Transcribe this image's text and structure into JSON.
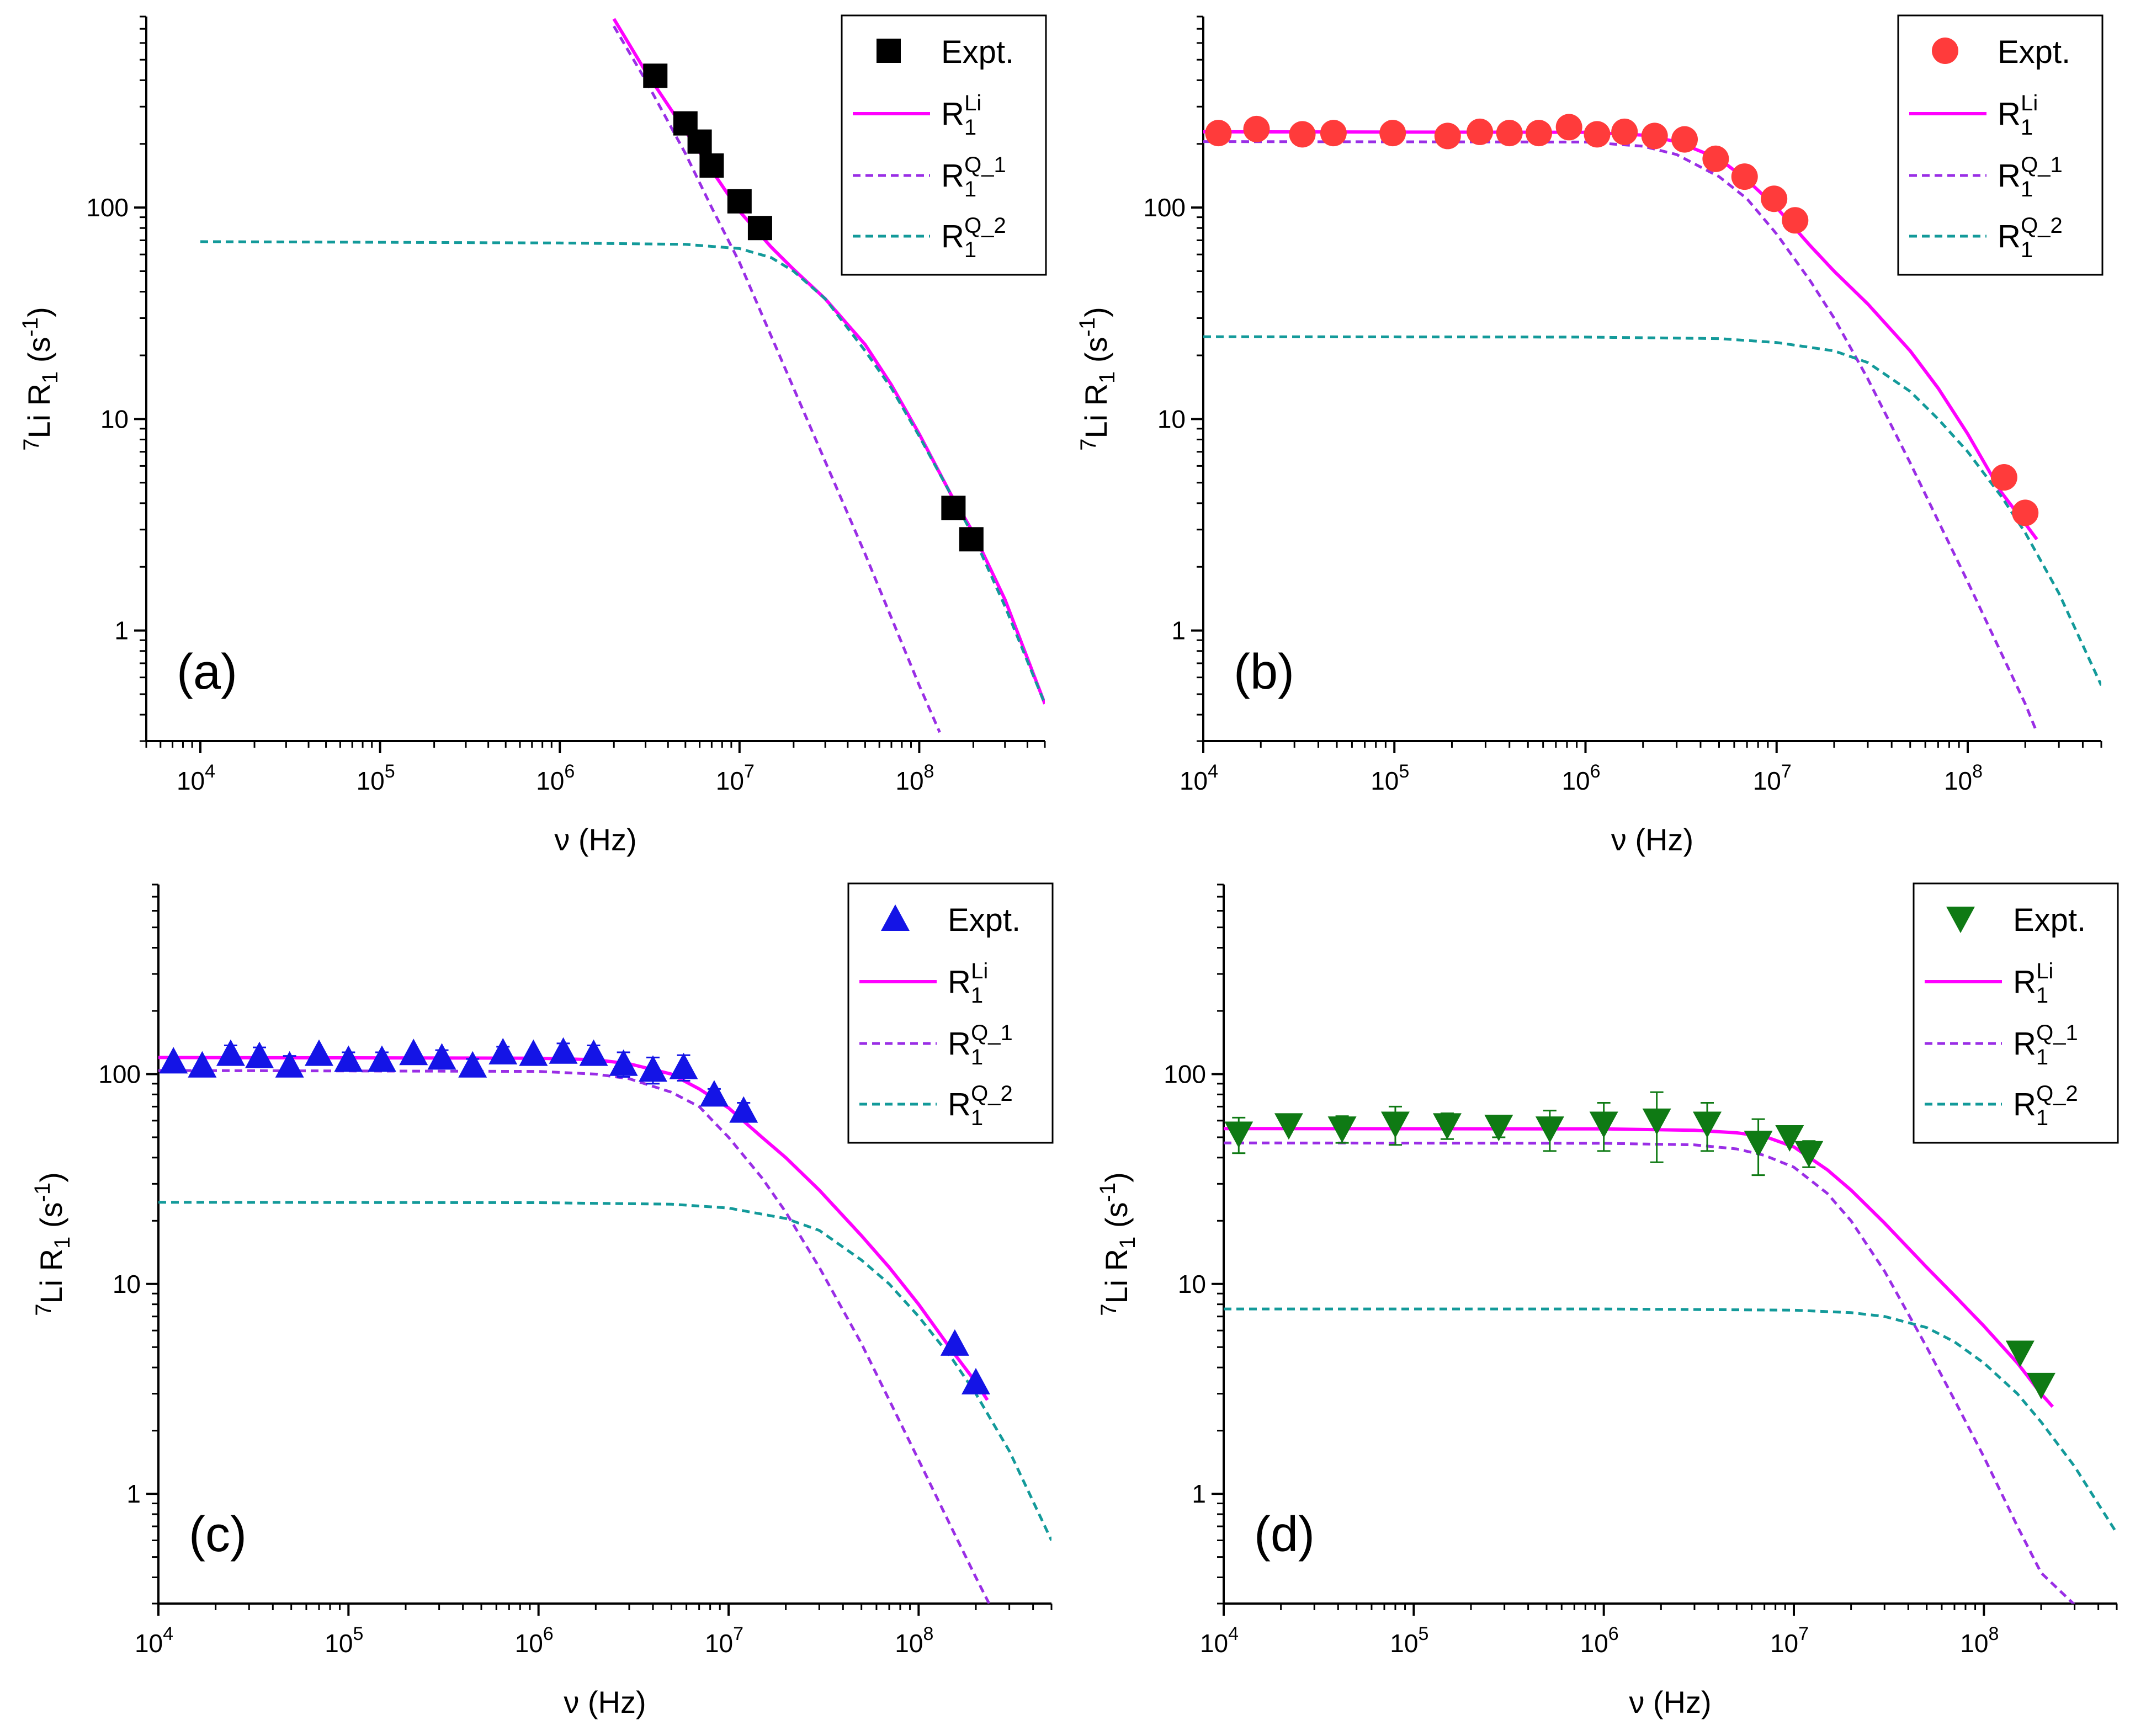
{
  "colors": {
    "rli": "#ff00ff",
    "rq1": "#9a2ee6",
    "rq2": "#139a9a",
    "expt_a": "#000000",
    "expt_b": "#ff3b3b",
    "expt_c": "#1414e6",
    "expt_d": "#0f7a14"
  },
  "legend": {
    "expt": "Expt.",
    "r_base": "R",
    "sub": "1",
    "rli_sup": "Li",
    "rq1_sup": "Q_1",
    "rq2_sup": "Q_2"
  },
  "chart_data": [
    {
      "type": "line",
      "panel_label": "(a)",
      "xlabel": "ν (Hz)",
      "ylabel_parts": [
        "7",
        "Li R",
        "1",
        " (s",
        "-1",
        ")"
      ],
      "xscale": "log",
      "yscale": "log",
      "xlim": [
        5000,
        500000000
      ],
      "ylim": [
        0.3,
        800
      ],
      "xticks": [
        10000,
        100000,
        1000000,
        10000000,
        100000000
      ],
      "xtick_labels": [
        [
          "10",
          "4"
        ],
        [
          "10",
          "5"
        ],
        [
          "10",
          "6"
        ],
        [
          "10",
          "7"
        ],
        [
          "10",
          "8"
        ]
      ],
      "yticks": [
        1,
        10,
        100
      ],
      "ytick_labels": [
        "1",
        "10",
        "100"
      ],
      "legend_position": "top-right",
      "expt_marker": "square",
      "series": [
        {
          "name": "Expt.",
          "kind": "scatter",
          "x": [
            3400000,
            5000000,
            6000000,
            7000000,
            10000000,
            13000000,
            155000000,
            195000000
          ],
          "y": [
            420,
            250,
            205,
            158,
            107,
            80,
            3.8,
            2.7
          ],
          "err": [
            0,
            25,
            22,
            0,
            0,
            0,
            0,
            0
          ]
        },
        {
          "name": "R1Li",
          "kind": "line",
          "x": [
            2000000,
            3000000,
            5000000,
            7000000,
            10000000,
            15000000,
            20000000,
            30000000,
            50000000,
            70000000,
            100000000,
            150000000,
            200000000,
            300000000,
            500000000
          ],
          "y": [
            780,
            440,
            230,
            150,
            96,
            65,
            51,
            37,
            22.5,
            14.5,
            8.5,
            4.4,
            2.9,
            1.4,
            0.45
          ]
        },
        {
          "name": "R1Q_1",
          "kind": "line",
          "x": [
            2000000,
            3000000,
            5000000,
            7000000,
            10000000,
            20000000,
            50000000,
            100000000,
            130000000
          ],
          "y": [
            720,
            400,
            180,
            100,
            55,
            14,
            2.3,
            0.55,
            0.33
          ]
        },
        {
          "name": "R1Q_2",
          "kind": "line",
          "x": [
            10000,
            1000000,
            5000000,
            10000000,
            15000000,
            20000000,
            30000000,
            50000000,
            70000000,
            100000000,
            150000000,
            200000000,
            300000000,
            500000000
          ],
          "y": [
            69,
            68,
            67,
            64,
            58,
            50,
            37,
            21,
            14,
            8.3,
            4.4,
            2.8,
            1.3,
            0.45
          ]
        }
      ]
    },
    {
      "type": "line",
      "panel_label": "(b)",
      "xlabel": "ν (Hz)",
      "ylabel_parts": [
        "7",
        "Li R",
        "1",
        " (s",
        "-1",
        ")"
      ],
      "xscale": "log",
      "yscale": "log",
      "xlim": [
        10000,
        500000000
      ],
      "ylim": [
        0.3,
        800
      ],
      "xticks": [
        10000,
        100000,
        1000000,
        10000000,
        100000000
      ],
      "xtick_labels": [
        [
          "10",
          "4"
        ],
        [
          "10",
          "5"
        ],
        [
          "10",
          "6"
        ],
        [
          "10",
          "7"
        ],
        [
          "10",
          "8"
        ]
      ],
      "yticks": [
        1,
        10,
        100
      ],
      "ytick_labels": [
        "1",
        "10",
        "100"
      ],
      "legend_position": "top-right",
      "expt_marker": "circle",
      "series": [
        {
          "name": "Expt.",
          "kind": "scatter",
          "x": [
            12000,
            19000,
            33000,
            48000,
            98000,
            190000,
            280000,
            400000,
            570000,
            820000,
            1150000,
            1600000,
            2300000,
            3300000,
            4800000,
            6800000,
            9700000,
            12500000,
            155000000,
            200000000
          ],
          "y": [
            225,
            235,
            222,
            225,
            225,
            218,
            228,
            225,
            225,
            240,
            222,
            228,
            218,
            210,
            170,
            140,
            110,
            87,
            5.3,
            3.6
          ],
          "err": [
            0,
            0,
            0,
            0,
            0,
            0,
            0,
            0,
            0,
            0,
            0,
            0,
            0,
            18,
            15,
            12,
            0,
            0,
            0,
            0
          ]
        },
        {
          "name": "R1Li",
          "kind": "line",
          "x": [
            10000,
            1000000,
            2000000,
            3000000,
            5000000,
            7000000,
            10000000,
            15000000,
            20000000,
            30000000,
            50000000,
            70000000,
            100000000,
            150000000,
            200000000,
            230000000
          ],
          "y": [
            228,
            227,
            220,
            205,
            170,
            135,
            100,
            66,
            50,
            35,
            21,
            14,
            8.5,
            4.5,
            3.2,
            2.7
          ]
        },
        {
          "name": "R1Q_1",
          "kind": "line",
          "x": [
            10000,
            1000000,
            2000000,
            3000000,
            5000000,
            7000000,
            10000000,
            15000000,
            20000000,
            30000000,
            50000000,
            70000000,
            100000000,
            150000000,
            200000000,
            230000000
          ],
          "y": [
            205,
            204,
            195,
            178,
            140,
            110,
            75,
            45,
            30,
            15.5,
            6.2,
            3.3,
            1.7,
            0.78,
            0.45,
            0.33
          ]
        },
        {
          "name": "R1Q_2",
          "kind": "line",
          "x": [
            10000,
            1000000,
            5000000,
            10000000,
            20000000,
            30000000,
            50000000,
            70000000,
            100000000,
            150000000,
            200000000,
            300000000,
            500000000
          ],
          "y": [
            24.5,
            24.4,
            24,
            23,
            21,
            18.5,
            13.5,
            10,
            7,
            4.3,
            2.9,
            1.5,
            0.55
          ]
        }
      ]
    },
    {
      "type": "line",
      "panel_label": "(c)",
      "xlabel": "ν (Hz)",
      "ylabel_parts": [
        "7",
        "Li R",
        "1",
        " (s",
        "-1",
        ")"
      ],
      "xscale": "log",
      "yscale": "log",
      "xlim": [
        10000,
        500000000
      ],
      "ylim": [
        0.3,
        800
      ],
      "xticks": [
        10000,
        100000,
        1000000,
        10000000,
        100000000
      ],
      "xtick_labels": [
        [
          "10",
          "4"
        ],
        [
          "10",
          "5"
        ],
        [
          "10",
          "6"
        ],
        [
          "10",
          "7"
        ],
        [
          "10",
          "8"
        ]
      ],
      "yticks": [
        1,
        10,
        100
      ],
      "ytick_labels": [
        "1",
        "10",
        "100"
      ],
      "legend_position": "top-right",
      "expt_marker": "triangle-up",
      "series": [
        {
          "name": "Expt.",
          "kind": "scatter",
          "x": [
            12000,
            17000,
            24000,
            34000,
            49000,
            70000,
            100000,
            150000,
            220000,
            310000,
            450000,
            650000,
            940000,
            1350000,
            1950000,
            2800000,
            4000000,
            5800000,
            8400000,
            12000000,
            155000000,
            200000000
          ],
          "y": [
            115,
            110,
            125,
            122,
            110,
            125,
            117,
            117,
            126,
            120,
            110,
            127,
            125,
            128,
            125,
            112,
            105,
            108,
            80,
            67,
            5.2,
            3.4
          ],
          "err": [
            0,
            0,
            12,
            12,
            12,
            0,
            10,
            10,
            0,
            10,
            8,
            8,
            0,
            12,
            12,
            15,
            15,
            15,
            5,
            6,
            0,
            0
          ]
        },
        {
          "name": "R1Li",
          "kind": "line",
          "x": [
            10000,
            1000000,
            2000000,
            3000000,
            5000000,
            7000000,
            10000000,
            15000000,
            20000000,
            30000000,
            50000000,
            70000000,
            100000000,
            150000000,
            200000000,
            230000000
          ],
          "y": [
            120,
            119,
            117,
            112,
            100,
            85,
            69,
            50,
            40,
            28,
            17,
            12,
            8,
            4.8,
            3.4,
            2.8
          ]
        },
        {
          "name": "R1Q_1",
          "kind": "line",
          "x": [
            10000,
            1000000,
            2000000,
            3000000,
            5000000,
            7000000,
            10000000,
            15000000,
            20000000,
            30000000,
            50000000,
            70000000,
            100000000,
            150000000,
            200000000,
            260000000
          ],
          "y": [
            104,
            103,
            100,
            95,
            82,
            70,
            50,
            32,
            22,
            12,
            5.2,
            2.8,
            1.45,
            0.68,
            0.4,
            0.25
          ]
        },
        {
          "name": "R1Q_2",
          "kind": "line",
          "x": [
            10000,
            1000000,
            5000000,
            10000000,
            20000000,
            30000000,
            50000000,
            70000000,
            100000000,
            150000000,
            200000000,
            300000000,
            500000000
          ],
          "y": [
            24.5,
            24.4,
            24,
            23,
            20.5,
            18,
            13,
            10,
            7,
            4.4,
            3,
            1.6,
            0.6
          ]
        }
      ]
    },
    {
      "type": "line",
      "panel_label": "(d)",
      "xlabel": "ν (Hz)",
      "ylabel_parts": [
        "7",
        "Li R",
        "1",
        " (s",
        "-1",
        ")"
      ],
      "xscale": "log",
      "yscale": "log",
      "xlim": [
        10000,
        500000000
      ],
      "ylim": [
        0.3,
        800
      ],
      "xticks": [
        10000,
        100000,
        1000000,
        10000000,
        100000000
      ],
      "xtick_labels": [
        [
          "10",
          "4"
        ],
        [
          "10",
          "5"
        ],
        [
          "10",
          "6"
        ],
        [
          "10",
          "7"
        ],
        [
          "10",
          "8"
        ]
      ],
      "yticks": [
        1,
        10,
        100
      ],
      "ytick_labels": [
        "1",
        "10",
        "100"
      ],
      "legend_position": "top-right",
      "expt_marker": "triangle-down",
      "series": [
        {
          "name": "Expt.",
          "kind": "scatter",
          "x": [
            12000,
            22000,
            42000,
            80000,
            150000,
            280000,
            520000,
            1000000,
            1900000,
            3500000,
            6500000,
            9500000,
            12000000,
            155000000,
            200000000
          ],
          "y": [
            52,
            57,
            55,
            58,
            57,
            56,
            55,
            58,
            60,
            58,
            47,
            50,
            42,
            4.7,
            3.3
          ],
          "err": [
            10,
            0,
            8,
            12,
            8,
            6,
            12,
            15,
            22,
            15,
            14,
            0,
            6,
            0,
            0
          ]
        },
        {
          "name": "R1Li",
          "kind": "line",
          "x": [
            10000,
            1000000,
            3000000,
            5000000,
            7000000,
            10000000,
            15000000,
            20000000,
            30000000,
            50000000,
            70000000,
            100000000,
            150000000,
            200000000,
            230000000
          ],
          "y": [
            55,
            54.8,
            54,
            52.5,
            50.5,
            45,
            35,
            28,
            19.5,
            12,
            8.8,
            6.3,
            4.2,
            3,
            2.6
          ]
        },
        {
          "name": "R1Q_1",
          "kind": "line",
          "x": [
            10000,
            1000000,
            3000000,
            5000000,
            7000000,
            10000000,
            15000000,
            20000000,
            30000000,
            50000000,
            70000000,
            100000000,
            150000000,
            200000000,
            320000000
          ],
          "y": [
            47,
            46.8,
            46,
            44,
            41,
            36,
            27,
            20,
            11.5,
            5,
            2.8,
            1.5,
            0.7,
            0.42,
            0.28
          ]
        },
        {
          "name": "R1Q_2",
          "kind": "line",
          "x": [
            10000,
            1000000,
            10000000,
            20000000,
            30000000,
            50000000,
            70000000,
            100000000,
            150000000,
            200000000,
            300000000,
            500000000
          ],
          "y": [
            7.6,
            7.6,
            7.5,
            7.3,
            7,
            6.2,
            5.3,
            4.2,
            3,
            2.2,
            1.35,
            0.65
          ]
        }
      ]
    }
  ]
}
